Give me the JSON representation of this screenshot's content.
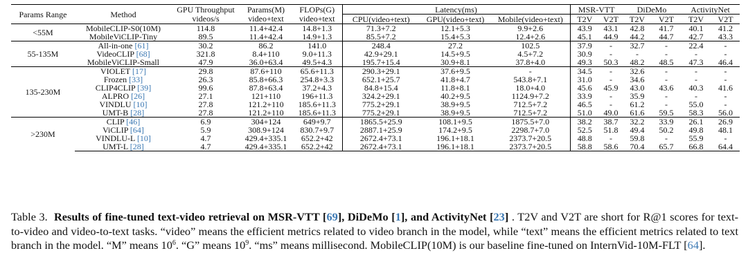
{
  "header": {
    "params_range": "Params Range",
    "method": "Method",
    "gpu_thr_1": "GPU Throughput",
    "gpu_thr_2": "videos/s",
    "params_1": "Params(M)",
    "params_2": "video+text",
    "flops_1": "FLOPs(G)",
    "flops_2": "video+text",
    "latency": "Latency(ms)",
    "lat_cpu": "CPU(video+text)",
    "lat_gpu": "GPU(video+text)",
    "lat_mobile": "Mobile(video+text)",
    "msrvtt": "MSR-VTT",
    "didemo": "DiDeMo",
    "activitynet": "ActivityNet",
    "t2v": "T2V",
    "v2t": "V2T"
  },
  "groups": [
    {
      "range": "<55M",
      "rows": [
        {
          "method": "MobileCLIP-S0(10M)",
          "cite": "",
          "bold_method": false,
          "gpu": "114.8",
          "params": "11.4+42.4",
          "flops": "14.8+1.3",
          "cpu": "71.3+7.2",
          "gpu_lat": "12.1+5.3",
          "mobile": "9.9+2.6",
          "m_t2v": "43.9",
          "m_v2t": "43.1",
          "d_t2v": "42.8",
          "d_v2t": "41.7",
          "a_t2v": "40.1",
          "a_v2t": "41.2",
          "bold_scores": false
        },
        {
          "method": "MobileViCLIP-Tiny",
          "cite": "",
          "bold_method": true,
          "gpu": "89.5",
          "params": "11.4+42.4",
          "flops": "14.9+1.3",
          "cpu": "85.5+7.2",
          "gpu_lat": "15.4+5.3",
          "mobile": "12.4+2.6",
          "m_t2v": "45.1",
          "m_v2t": "44.9",
          "d_t2v": "44.2",
          "d_v2t": "44.7",
          "a_t2v": "42.7",
          "a_v2t": "43.3",
          "bold_scores": true
        }
      ]
    },
    {
      "range": "55-135M",
      "rows": [
        {
          "method": "All-in-one ",
          "cite": "[61]",
          "bold_method": false,
          "gpu": "30.2",
          "params": "86.2",
          "flops": "141.0",
          "cpu": "248.4",
          "gpu_lat": "27.2",
          "mobile": "102.5",
          "m_t2v": "37.9",
          "m_v2t": "-",
          "d_t2v": "32.7",
          "d_v2t": "-",
          "a_t2v": "22.4",
          "a_v2t": "-",
          "bold_scores": false
        },
        {
          "method": "VideoCLIP ",
          "cite": "[68]",
          "bold_method": false,
          "gpu": "321.8",
          "params": "8.4+110",
          "flops": "9.0+11.3",
          "cpu": "42.9+29.1",
          "gpu_lat": "14.5+9.5",
          "mobile": "4.5+7.2",
          "m_t2v": "30.9",
          "m_v2t": "-",
          "d_t2v": "-",
          "d_v2t": "-",
          "a_t2v": "-",
          "a_v2t": "-",
          "bold_scores": false
        },
        {
          "method": "MobileViCLIP-Small",
          "cite": "",
          "bold_method": true,
          "gpu": "47.9",
          "params": "36.0+63.4",
          "flops": "49.5+4.3",
          "cpu": "195.7+15.4",
          "gpu_lat": "30.9+8.1",
          "mobile": "37.8+4.0",
          "m_t2v": "49.3",
          "m_v2t": "50.3",
          "d_t2v": "48.2",
          "d_v2t": "48.5",
          "a_t2v": "47.3",
          "a_v2t": "46.4",
          "bold_scores": true
        }
      ]
    },
    {
      "range": "135-230M",
      "rows": [
        {
          "method": "VIOLET ",
          "cite": "[17]",
          "bold_method": false,
          "gpu": "29.8",
          "params": "87.6+110",
          "flops": "65.6+11.3",
          "cpu": "290.3+29.1",
          "gpu_lat": "37.6+9.5",
          "mobile": "-",
          "m_t2v": "34.5",
          "m_v2t": "-",
          "d_t2v": "32.6",
          "d_v2t": "-",
          "a_t2v": "-",
          "a_v2t": "-",
          "bold_scores": false
        },
        {
          "method": "Frozen ",
          "cite": "[33]",
          "bold_method": false,
          "gpu": "26.3",
          "params": "85.8+66.3",
          "flops": "254.8+3.3",
          "cpu": "652.1+25.7",
          "gpu_lat": "41.8+4.7",
          "mobile": "543.8+7.1",
          "m_t2v": "31.0",
          "m_v2t": "-",
          "d_t2v": "34.6",
          "d_v2t": "-",
          "a_t2v": "-",
          "a_v2t": "-",
          "bold_scores": false
        },
        {
          "method": "CLIP4CLIP ",
          "cite": "[39]",
          "bold_method": false,
          "gpu": "99.6",
          "params": "87.8+63.4",
          "flops": "37.2+4.3",
          "cpu": "84.8+15.4",
          "gpu_lat": "11.8+8.1",
          "mobile": "18.0+4.0",
          "m_t2v": "45.6",
          "m_v2t": "45.9",
          "d_t2v": "43.0",
          "d_v2t": "43.6",
          "a_t2v": "40.3",
          "a_v2t": "41.6",
          "bold_scores": false
        },
        {
          "method": "ALPRO ",
          "cite": "[26]",
          "bold_method": false,
          "gpu": "27.1",
          "params": "121+110",
          "flops": "196+11.3",
          "cpu": "324.2+29.1",
          "gpu_lat": "40.2+9.5",
          "mobile": "1124.9+7.2",
          "m_t2v": "33.9",
          "m_v2t": "-",
          "d_t2v": "35.9",
          "d_v2t": "-",
          "a_t2v": "-",
          "a_v2t": "-",
          "bold_scores": false
        },
        {
          "method": "VINDLU ",
          "cite": "[10]",
          "bold_method": false,
          "gpu": "27.8",
          "params": "121.2+110",
          "flops": "185.6+11.3",
          "cpu": "775.2+29.1",
          "gpu_lat": "38.9+9.5",
          "mobile": "712.5+7.2",
          "m_t2v": "46.5",
          "m_v2t": "-",
          "d_t2v": "61.2",
          "d_v2t": "-",
          "a_t2v": "55.0",
          "a_v2t": "-",
          "bold_scores": false
        },
        {
          "method": "UMT-B ",
          "cite": "[28]",
          "bold_method": false,
          "gpu": "27.8",
          "params": "121.2+110",
          "flops": "185.6+11.3",
          "cpu": "775.2+29.1",
          "gpu_lat": "38.9+9.5",
          "mobile": "712.5+7.2",
          "m_t2v": "51.0",
          "m_v2t": "49.0",
          "d_t2v": "61.6",
          "d_v2t": "59.5",
          "a_t2v": "58.3",
          "a_v2t": "56.0",
          "bold_scores": true
        }
      ]
    },
    {
      "range": ">230M",
      "rows": [
        {
          "method": "CLIP ",
          "cite": "[46]",
          "bold_method": false,
          "gpu": "6.9",
          "params": "304+124",
          "flops": "649+9.7",
          "cpu": "1865.5+25.9",
          "gpu_lat": "108.1+9.5",
          "mobile": "1875.5+7.0",
          "m_t2v": "38.2",
          "m_v2t": "38.7",
          "d_t2v": "32.2",
          "d_v2t": "33.9",
          "a_t2v": "26.1",
          "a_v2t": "26.9",
          "bold_scores": false
        },
        {
          "method": "ViCLIP ",
          "cite": "[64]",
          "bold_method": false,
          "gpu": "5.9",
          "params": "308.9+124",
          "flops": "830.7+9.7",
          "cpu": "2887.1+25.9",
          "gpu_lat": "174.2+9.5",
          "mobile": "2298.7+7.0",
          "m_t2v": "52.5",
          "m_v2t": "51.8",
          "d_t2v": "49.4",
          "d_v2t": "50.2",
          "a_t2v": "49.8",
          "a_v2t": "48.1",
          "bold_scores": false
        },
        {
          "method": "VINDLU-L ",
          "cite": "[10]",
          "bold_method": false,
          "gpu": "4.7",
          "params": "429.4+335.1",
          "flops": "652.2+42",
          "cpu": "2672.4+73.1",
          "gpu_lat": "196.1+18.1",
          "mobile": "2373.7+20.5",
          "m_t2v": "48.8",
          "m_v2t": "-",
          "d_t2v": "59.8",
          "d_v2t": "-",
          "a_t2v": "55.9",
          "a_v2t": "-",
          "bold_scores": false
        },
        {
          "method": "UMT-L ",
          "cite": "[28]",
          "bold_method": false,
          "gpu": "4.7",
          "params": "429.4+335.1",
          "flops": "652.2+42",
          "cpu": "2672.4+73.1",
          "gpu_lat": "196.1+18.1",
          "mobile": "2373.7+20.5",
          "m_t2v": "58.8",
          "m_v2t": "58.6",
          "d_t2v": "70.4",
          "d_v2t": "65.7",
          "a_t2v": "66.8",
          "a_v2t": "64.4",
          "bold_scores": true
        }
      ]
    }
  ],
  "caption": {
    "label": "Table 3.",
    "bold_a": "Results of fine-tuned text-video retrieval on MSR-VTT",
    "cite_a": "69",
    "bold_b": ", DiDeMo",
    "cite_b": "1",
    "bold_c": ", and ActivityNet",
    "cite_c": "23",
    "text_1": ". T2V and V2T are short for R@1 scores for text-to-video and video-to-text tasks. “video” means the efficient metrics related to video branch in the model, while “text” means the efficient metrics related to text branch in the model. “M” means 10",
    "sup_m": "6",
    "text_2": ". “G” means 10",
    "sup_g": "9",
    "text_3": ". “ms” means millisecond. MobileCLIP(10M) is our baseline fine-tuned on InternVid-10M-FLT",
    "cite_d": "64",
    "text_4": "."
  }
}
